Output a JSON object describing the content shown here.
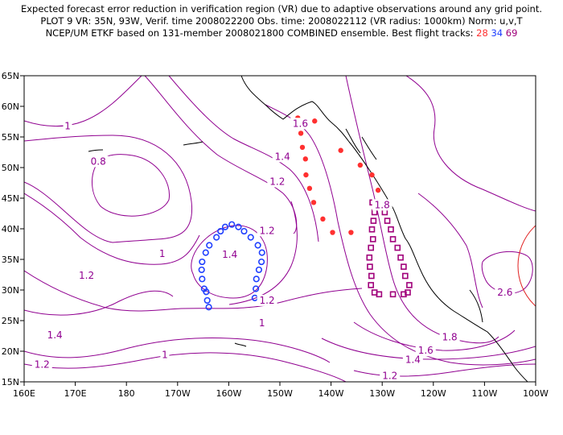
{
  "header": {
    "line1": "Expected forecast error reduction in verification region (VR) due to adaptive observations around any grid point.",
    "line2": "PLOT 9 VR: 35N, 93W, Verif. time 2008022200 Obs. time: 2008022112 (VR radius: 1000km) Norm: u,v,T",
    "line3_prefix": "NCEP/UM ETKF based on 131-member 2008021800 COMBINED ensemble.  Best flight tracks:",
    "track_a": "28",
    "track_b": "34",
    "track_c": "69"
  },
  "axes": {
    "lon_labels": [
      "160E",
      "170E",
      "180",
      "170W",
      "160W",
      "150W",
      "140W",
      "130W",
      "120W",
      "110W",
      "100W"
    ],
    "lat_labels": [
      "15N",
      "20N",
      "25N",
      "30N",
      "35N",
      "40N",
      "45N",
      "50N",
      "55N",
      "60N",
      "65N"
    ],
    "lon_range": [
      160,
      260
    ],
    "lat_range": [
      15,
      65
    ]
  },
  "contour_labels": [
    {
      "text": "1",
      "lon": 168.5,
      "lat": 56.8
    },
    {
      "text": "0.8",
      "lon": 174.5,
      "lat": 51.0
    },
    {
      "text": "1.4",
      "lon": 210.5,
      "lat": 51.8
    },
    {
      "text": "1.2",
      "lon": 209.5,
      "lat": 47.7
    },
    {
      "text": "1.6",
      "lon": 214.0,
      "lat": 57.2
    },
    {
      "text": "1.8",
      "lon": 230.0,
      "lat": 43.9
    },
    {
      "text": "1.2",
      "lon": 207.5,
      "lat": 39.7
    },
    {
      "text": "1.4",
      "lon": 200.2,
      "lat": 35.8
    },
    {
      "text": "1",
      "lon": 187.0,
      "lat": 35.9
    },
    {
      "text": "1.2",
      "lon": 172.2,
      "lat": 32.4
    },
    {
      "text": "1.2",
      "lon": 207.5,
      "lat": 28.3
    },
    {
      "text": "1",
      "lon": 206.5,
      "lat": 24.6
    },
    {
      "text": "1.4",
      "lon": 166.0,
      "lat": 22.6
    },
    {
      "text": "1",
      "lon": 187.5,
      "lat": 19.4
    },
    {
      "text": "1.2",
      "lon": 163.5,
      "lat": 17.8
    },
    {
      "text": "2.6",
      "lon": 254.0,
      "lat": 29.6
    },
    {
      "text": "1.8",
      "lon": 243.2,
      "lat": 22.3
    },
    {
      "text": "1.6",
      "lon": 238.5,
      "lat": 20.1
    },
    {
      "text": "1.4",
      "lon": 236.0,
      "lat": 18.6
    },
    {
      "text": "1.2",
      "lon": 231.5,
      "lat": 16.0
    }
  ],
  "flight_tracks": [
    {
      "id": "28",
      "marker": "filled-dot",
      "color": "#ff3030",
      "points": [
        [
          213.5,
          58.1
        ],
        [
          214.5,
          57.6
        ],
        [
          216.8,
          57.6
        ],
        [
          214.1,
          55.6
        ],
        [
          214.4,
          53.3
        ],
        [
          221.9,
          52.8
        ],
        [
          215.0,
          51.4
        ],
        [
          225.7,
          50.4
        ],
        [
          215.1,
          48.8
        ],
        [
          228.0,
          48.8
        ],
        [
          215.8,
          46.6
        ],
        [
          229.2,
          46.3
        ],
        [
          216.6,
          44.3
        ],
        [
          230.1,
          44.3
        ],
        [
          218.4,
          41.6
        ],
        [
          220.3,
          39.4
        ],
        [
          223.9,
          39.4
        ]
      ]
    },
    {
      "id": "34",
      "marker": "open-circle",
      "color": "#2040ff",
      "points": [
        [
          200.6,
          40.7
        ],
        [
          199.3,
          40.3
        ],
        [
          201.9,
          40.3
        ],
        [
          198.4,
          39.6
        ],
        [
          203.0,
          39.6
        ],
        [
          197.6,
          38.6
        ],
        [
          204.3,
          38.6
        ],
        [
          196.2,
          37.3
        ],
        [
          205.7,
          37.3
        ],
        [
          195.5,
          36.1
        ],
        [
          206.5,
          36.1
        ],
        [
          194.8,
          34.6
        ],
        [
          206.4,
          34.6
        ],
        [
          194.7,
          33.3
        ],
        [
          205.9,
          33.3
        ],
        [
          194.8,
          31.8
        ],
        [
          205.4,
          31.8
        ],
        [
          195.2,
          30.2
        ],
        [
          205.3,
          30.2
        ],
        [
          195.6,
          29.7
        ],
        [
          205.1,
          28.7
        ],
        [
          195.8,
          28.3
        ],
        [
          196.1,
          27.2
        ]
      ]
    },
    {
      "id": "69",
      "marker": "open-square",
      "color": "#a0007a",
      "points": [
        [
          228.1,
          44.3
        ],
        [
          230.0,
          44.3
        ],
        [
          228.5,
          42.7
        ],
        [
          230.5,
          42.7
        ],
        [
          228.3,
          41.3
        ],
        [
          231.0,
          41.3
        ],
        [
          228.0,
          39.9
        ],
        [
          231.7,
          39.9
        ],
        [
          228.2,
          38.3
        ],
        [
          232.1,
          38.3
        ],
        [
          227.8,
          36.9
        ],
        [
          233.0,
          36.9
        ],
        [
          227.5,
          35.3
        ],
        [
          233.6,
          35.3
        ],
        [
          227.6,
          33.8
        ],
        [
          234.2,
          33.8
        ],
        [
          227.9,
          32.3
        ],
        [
          234.5,
          32.3
        ],
        [
          227.8,
          30.8
        ],
        [
          235.3,
          30.8
        ],
        [
          228.5,
          29.6
        ],
        [
          235.0,
          29.6
        ],
        [
          229.4,
          29.3
        ],
        [
          232.1,
          29.3
        ],
        [
          234.2,
          29.3
        ]
      ]
    }
  ],
  "colors": {
    "contour": "#900090",
    "coast": "#000000",
    "vr_circle": "#e02020",
    "track_28": "#ff3030",
    "track_34": "#2040ff",
    "track_69": "#a0007a"
  }
}
